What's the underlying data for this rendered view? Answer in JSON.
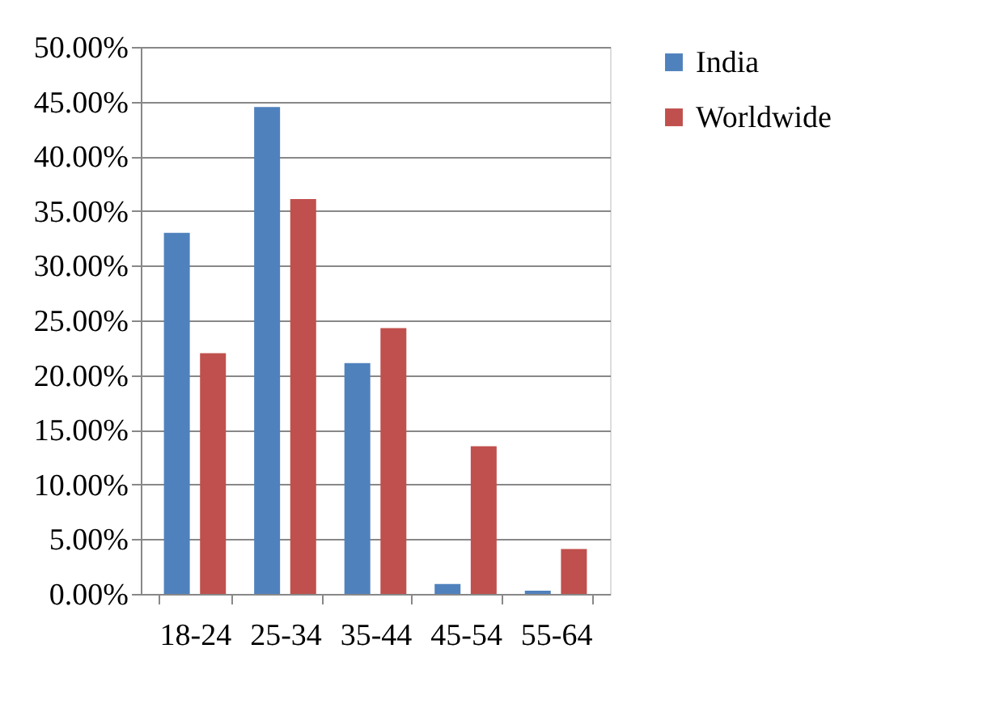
{
  "chart_data": {
    "type": "bar",
    "categories": [
      "18-24",
      "25-34",
      "35-44",
      "45-54",
      "55-64"
    ],
    "series": [
      {
        "name": "India",
        "color": "#4f81bd",
        "values": [
          33.0,
          44.5,
          21.1,
          0.9,
          0.3
        ]
      },
      {
        "name": "Worldwide",
        "color": "#c0504d",
        "values": [
          22.0,
          36.1,
          24.3,
          13.5,
          4.1
        ]
      }
    ],
    "ylim": [
      0,
      50
    ],
    "yticks": [
      {
        "value": 0,
        "label": "0.00%"
      },
      {
        "value": 5,
        "label": "5.00%"
      },
      {
        "value": 10,
        "label": "10.00%"
      },
      {
        "value": 15,
        "label": "15.00%"
      },
      {
        "value": 20,
        "label": "20.00%"
      },
      {
        "value": 25,
        "label": "25.00%"
      },
      {
        "value": 30,
        "label": "30.00%"
      },
      {
        "value": 35,
        "label": "35.00%"
      },
      {
        "value": 40,
        "label": "40.00%"
      },
      {
        "value": 45,
        "label": "45.00%"
      },
      {
        "value": 50,
        "label": "50.00%"
      }
    ],
    "grid": "y",
    "legend": "right"
  }
}
